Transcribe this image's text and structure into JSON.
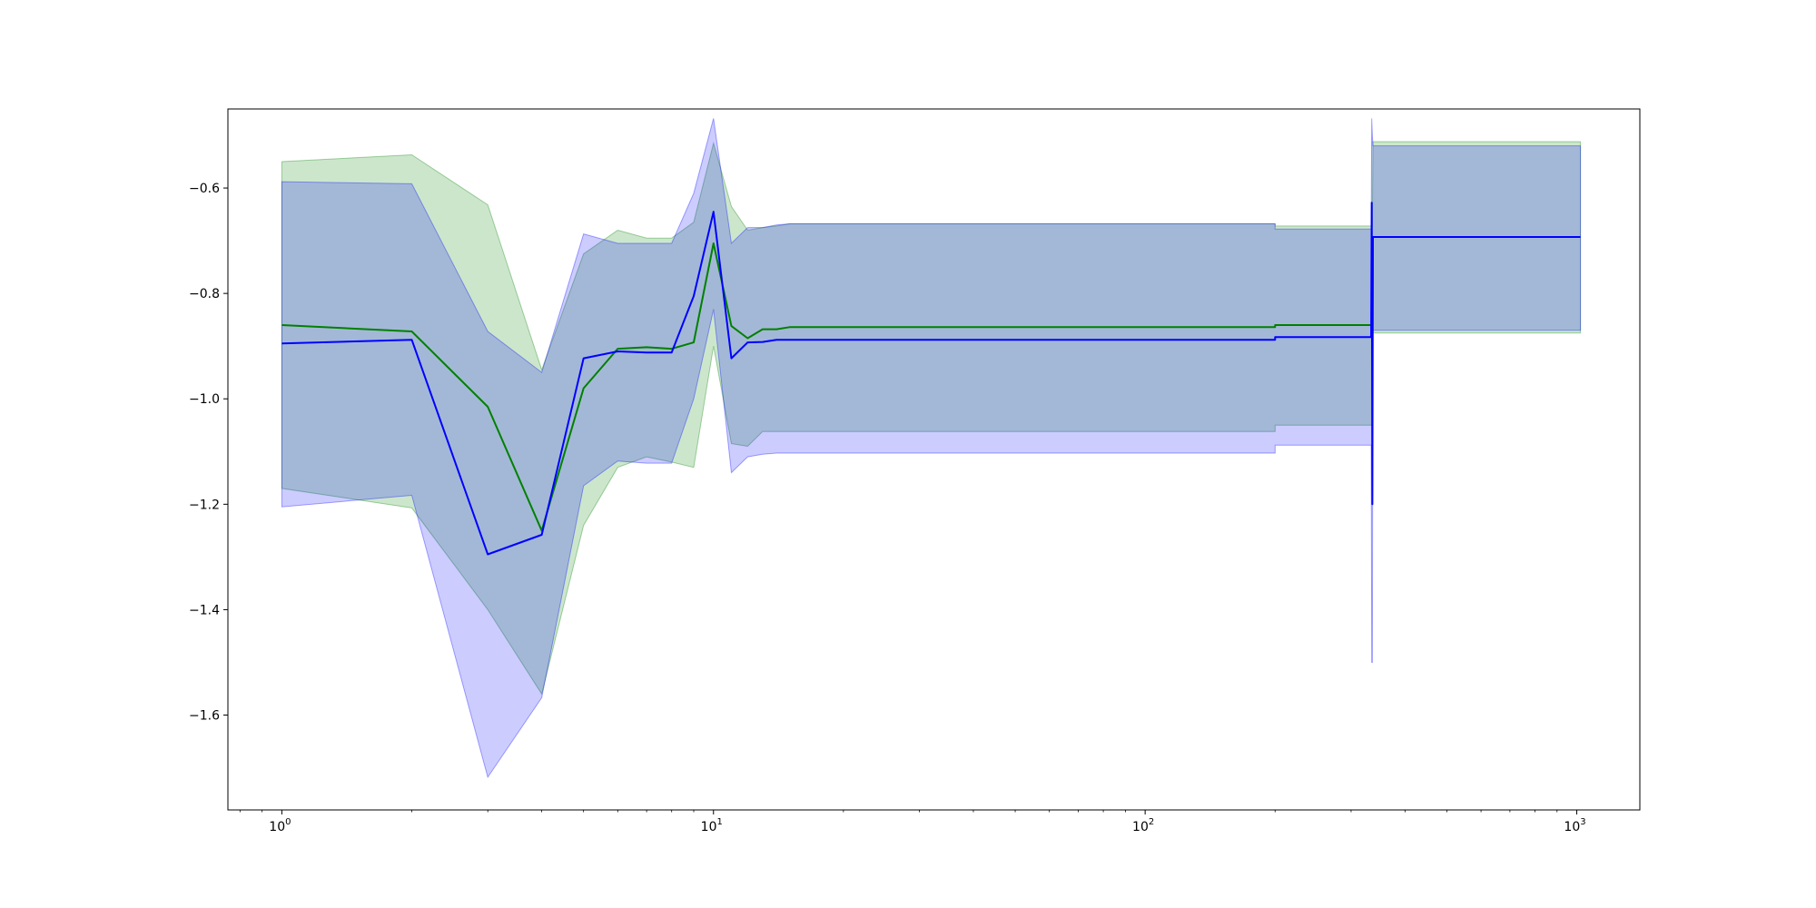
{
  "chart_data": {
    "type": "line",
    "title": "",
    "xlabel": "",
    "ylabel": "",
    "xscale": "log",
    "xlim": [
      0.75,
      1400
    ],
    "ylim": [
      -1.78,
      -0.45
    ],
    "grid": false,
    "legend": "none",
    "x_ticks": [
      {
        "value": 1,
        "base": "10",
        "exp": "0"
      },
      {
        "value": 10,
        "base": "10",
        "exp": "1"
      },
      {
        "value": 100,
        "base": "10",
        "exp": "2"
      },
      {
        "value": 1000,
        "base": "10",
        "exp": "3"
      }
    ],
    "y_ticks": [
      {
        "value": -0.6,
        "label": "−0.6"
      },
      {
        "value": -0.8,
        "label": "−0.8"
      },
      {
        "value": -1.0,
        "label": "−1.0"
      },
      {
        "value": -1.2,
        "label": "−1.2"
      },
      {
        "value": -1.4,
        "label": "−1.4"
      },
      {
        "value": -1.6,
        "label": "−1.6"
      }
    ],
    "series": [
      {
        "color": "#008000",
        "band_color": "#008000",
        "band_opacity": 0.2,
        "line": [
          [
            1,
            -0.86
          ],
          [
            2,
            -0.872
          ],
          [
            3,
            -1.015
          ],
          [
            4,
            -1.25
          ],
          [
            5,
            -0.98
          ],
          [
            6,
            -0.905
          ],
          [
            7,
            -0.902
          ],
          [
            8,
            -0.905
          ],
          [
            9,
            -0.893
          ],
          [
            10,
            -0.705
          ],
          [
            11,
            -0.862
          ],
          [
            12,
            -0.885
          ],
          [
            13,
            -0.868
          ],
          [
            14,
            -0.868
          ],
          [
            15,
            -0.864
          ],
          [
            200,
            -0.864
          ],
          [
            200,
            -0.86
          ],
          [
            336,
            -0.86
          ],
          [
            337,
            -0.693
          ],
          [
            1020,
            -0.693
          ]
        ],
        "upper": [
          [
            1,
            -0.55
          ],
          [
            2,
            -0.537
          ],
          [
            3,
            -0.632
          ],
          [
            4,
            -0.945
          ],
          [
            5,
            -0.725
          ],
          [
            6,
            -0.68
          ],
          [
            7,
            -0.695
          ],
          [
            8,
            -0.695
          ],
          [
            9,
            -0.665
          ],
          [
            10,
            -0.515
          ],
          [
            11,
            -0.635
          ],
          [
            12,
            -0.68
          ],
          [
            13,
            -0.675
          ],
          [
            14,
            -0.672
          ],
          [
            15,
            -0.668
          ],
          [
            200,
            -0.668
          ],
          [
            200,
            -0.672
          ],
          [
            336,
            -0.672
          ],
          [
            337,
            -0.512
          ],
          [
            1020,
            -0.512
          ]
        ],
        "lower": [
          [
            1,
            -1.17
          ],
          [
            2,
            -1.207
          ],
          [
            3,
            -1.4
          ],
          [
            4,
            -1.56
          ],
          [
            5,
            -1.24
          ],
          [
            6,
            -1.13
          ],
          [
            7,
            -1.11
          ],
          [
            8,
            -1.12
          ],
          [
            9,
            -1.13
          ],
          [
            10,
            -0.9
          ],
          [
            11,
            -1.085
          ],
          [
            12,
            -1.09
          ],
          [
            13,
            -1.062
          ],
          [
            14,
            -1.062
          ],
          [
            15,
            -1.062
          ],
          [
            200,
            -1.062
          ],
          [
            200,
            -1.05
          ],
          [
            336,
            -1.05
          ],
          [
            337,
            -0.875
          ],
          [
            1020,
            -0.875
          ]
        ]
      },
      {
        "color": "#0000ff",
        "band_color": "#0000ff",
        "band_opacity": 0.2,
        "line": [
          [
            1,
            -0.895
          ],
          [
            2,
            -0.888
          ],
          [
            3,
            -1.295
          ],
          [
            4,
            -1.258
          ],
          [
            5,
            -0.923
          ],
          [
            6,
            -0.91
          ],
          [
            7,
            -0.912
          ],
          [
            8,
            -0.912
          ],
          [
            9,
            -0.805
          ],
          [
            10,
            -0.645
          ],
          [
            11,
            -0.923
          ],
          [
            12,
            -0.893
          ],
          [
            13,
            -0.892
          ],
          [
            14,
            -0.888
          ],
          [
            15,
            -0.888
          ],
          [
            200,
            -0.888
          ],
          [
            200,
            -0.883
          ],
          [
            334,
            -0.883
          ],
          [
            335,
            -0.628
          ],
          [
            336,
            -1.2
          ],
          [
            337,
            -0.693
          ],
          [
            1020,
            -0.693
          ]
        ],
        "upper": [
          [
            1,
            -0.588
          ],
          [
            2,
            -0.592
          ],
          [
            3,
            -0.872
          ],
          [
            4,
            -0.95
          ],
          [
            5,
            -0.687
          ],
          [
            6,
            -0.705
          ],
          [
            7,
            -0.705
          ],
          [
            8,
            -0.705
          ],
          [
            9,
            -0.61
          ],
          [
            10,
            -0.468
          ],
          [
            11,
            -0.705
          ],
          [
            12,
            -0.675
          ],
          [
            13,
            -0.675
          ],
          [
            14,
            -0.67
          ],
          [
            15,
            -0.668
          ],
          [
            200,
            -0.668
          ],
          [
            200,
            -0.678
          ],
          [
            334,
            -0.678
          ],
          [
            335,
            -0.468
          ],
          [
            336,
            -0.5
          ],
          [
            337,
            -0.52
          ],
          [
            1020,
            -0.52
          ]
        ],
        "lower": [
          [
            1,
            -1.205
          ],
          [
            2,
            -1.183
          ],
          [
            3,
            -1.718
          ],
          [
            4,
            -1.567
          ],
          [
            5,
            -1.165
          ],
          [
            6,
            -1.118
          ],
          [
            7,
            -1.122
          ],
          [
            8,
            -1.122
          ],
          [
            9,
            -1.0
          ],
          [
            10,
            -0.83
          ],
          [
            11,
            -1.14
          ],
          [
            12,
            -1.11
          ],
          [
            13,
            -1.105
          ],
          [
            14,
            -1.103
          ],
          [
            15,
            -1.103
          ],
          [
            200,
            -1.103
          ],
          [
            200,
            -1.088
          ],
          [
            334,
            -1.088
          ],
          [
            335,
            -1.5
          ],
          [
            336,
            -1.5
          ],
          [
            337,
            -0.87
          ],
          [
            1020,
            -0.87
          ]
        ]
      }
    ]
  }
}
